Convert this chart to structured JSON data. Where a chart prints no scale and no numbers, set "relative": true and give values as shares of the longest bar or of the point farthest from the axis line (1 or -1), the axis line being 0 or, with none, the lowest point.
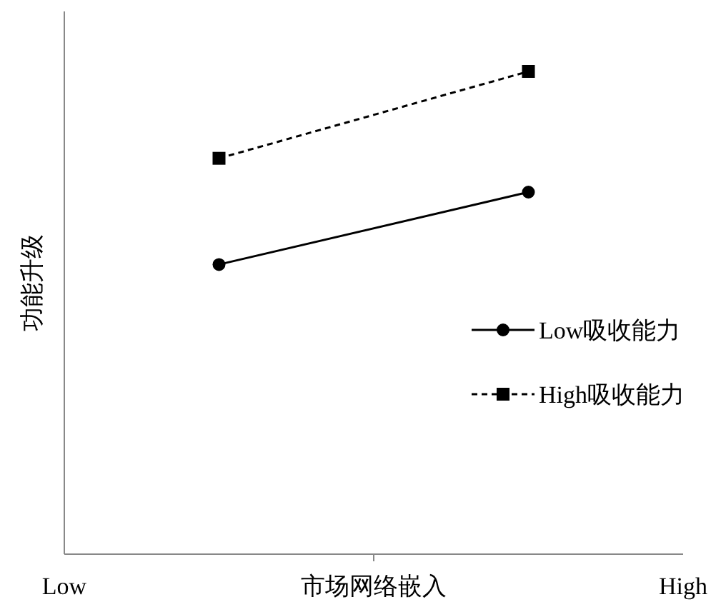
{
  "chart_data": {
    "type": "line",
    "relative": true,
    "xlabel": "市场网络嵌入",
    "ylabel": "功能升级",
    "categories": [
      "Low",
      null,
      null,
      null,
      "High"
    ],
    "legend": "right",
    "series": [
      {
        "name": "Low吸收能力",
        "color": "#000000",
        "marker": "circle",
        "line_style": "solid",
        "values": [
          null,
          0.6,
          null,
          0.75,
          null
        ]
      },
      {
        "name": "High吸收能力",
        "color": "#000000",
        "marker": "square",
        "line_style": "dashed",
        "values": [
          null,
          0.82,
          null,
          1,
          null
        ]
      }
    ]
  }
}
